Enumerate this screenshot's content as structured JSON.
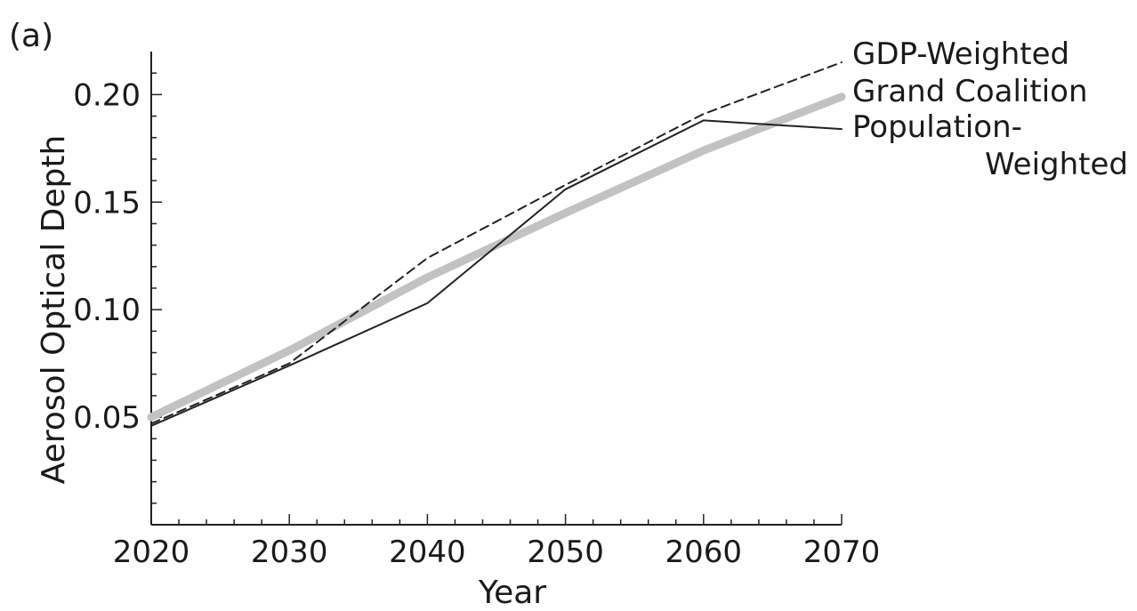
{
  "chart_data": {
    "type": "line",
    "panel_label": "(a)",
    "title": "",
    "xlabel": "Year",
    "ylabel": "Aerosol Optical Depth",
    "xlim": [
      2020,
      2070
    ],
    "ylim": [
      0.0,
      0.22
    ],
    "x_ticks": [
      2020,
      2030,
      2040,
      2050,
      2060,
      2070
    ],
    "x_tick_labels": [
      "2020",
      "2030",
      "2040",
      "2050",
      "2060",
      "2070"
    ],
    "y_ticks": [
      0.05,
      0.1,
      0.15,
      0.2
    ],
    "y_tick_labels": [
      "0.05",
      "0.10",
      "0.15",
      "0.20"
    ],
    "grid": false,
    "legend_placement": "right (labels at line ends)",
    "series": [
      {
        "name": "GDP-Weighted",
        "style": "dashed",
        "color": "#222222",
        "x": [
          2020,
          2030,
          2040,
          2050,
          2060,
          2070
        ],
        "values": [
          0.047,
          0.075,
          0.124,
          0.158,
          0.191,
          0.215
        ]
      },
      {
        "name": "Grand Coalition",
        "style": "thick",
        "color": "#c2c2c2",
        "x": [
          2020,
          2030,
          2040,
          2050,
          2060,
          2070
        ],
        "values": [
          0.05,
          0.081,
          0.115,
          0.145,
          0.174,
          0.199
        ]
      },
      {
        "name": "Population-Weighted",
        "name_lines": [
          "Population-",
          "Weighted"
        ],
        "style": "solid",
        "color": "#222222",
        "x": [
          2020,
          2030,
          2040,
          2050,
          2060,
          2070
        ],
        "values": [
          0.046,
          0.074,
          0.103,
          0.156,
          0.188,
          0.184
        ]
      }
    ]
  }
}
